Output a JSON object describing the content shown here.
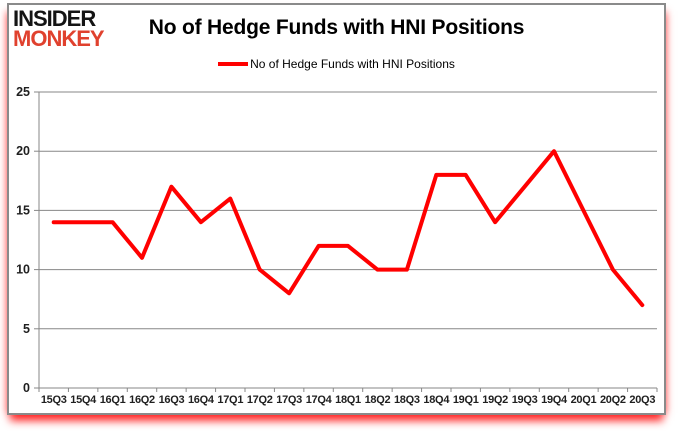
{
  "logo": {
    "line1": "INSIDER",
    "line2": "MONKEY"
  },
  "header": {
    "title": "No of Hedge Funds with HNI Positions"
  },
  "legend": {
    "label": "No of Hedge Funds with HNI Positions",
    "line_color": "#ff0000"
  },
  "chart_data": {
    "type": "line",
    "title": "No of Hedge Funds with HNI Positions",
    "categories": [
      "15Q3",
      "15Q4",
      "16Q1",
      "16Q2",
      "16Q3",
      "16Q4",
      "17Q1",
      "17Q2",
      "17Q3",
      "17Q4",
      "18Q1",
      "18Q2",
      "18Q3",
      "18Q4",
      "19Q1",
      "19Q2",
      "19Q3",
      "19Q4",
      "20Q1",
      "20Q2",
      "20Q3"
    ],
    "series": [
      {
        "name": "No of Hedge Funds with HNI Positions",
        "color": "#ff0000",
        "values": [
          14,
          14,
          14,
          11,
          17,
          14,
          16,
          10,
          8,
          12,
          12,
          10,
          10,
          18,
          18,
          14,
          17,
          20,
          15,
          10,
          7
        ]
      }
    ],
    "xlabel": "",
    "ylabel": "",
    "ylim": [
      0,
      25
    ],
    "yticks": [
      0,
      5,
      10,
      15,
      20,
      25
    ],
    "grid": true,
    "legend_position": "top",
    "colors": {
      "gridline": "#878787",
      "axis": "#878787",
      "tick_label": "#1f1f1f",
      "background": "#ffffff"
    }
  }
}
